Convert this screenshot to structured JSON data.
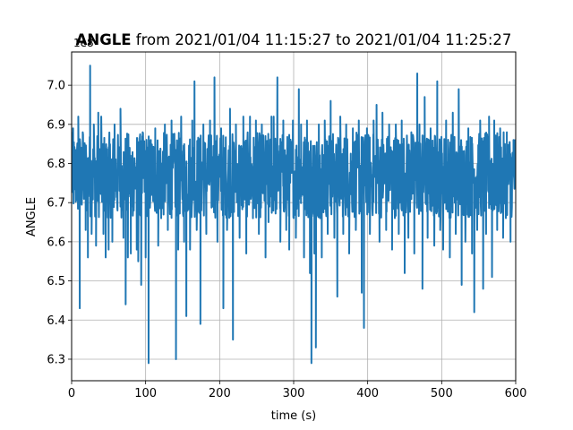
{
  "chart_data": {
    "type": "line",
    "title_bold": "ANGLE",
    "title_rest": " from 2021/01/04 11:15:27 to 2021/01/04 11:25:27",
    "xlabel": "time (s)",
    "ylabel": "ANGLE",
    "y_offset_label": "1e8",
    "xlim": [
      0,
      600
    ],
    "ylim": [
      6.245,
      7.085
    ],
    "xticks": [
      0,
      100,
      200,
      300,
      400,
      500,
      600
    ],
    "yticks": [
      6.3,
      6.4,
      6.5,
      6.6,
      6.7,
      6.8,
      6.9,
      7.0
    ],
    "grid": true,
    "color": "#1f77b4",
    "baseline": {
      "center": 6.77,
      "amplitude": 0.11,
      "samples": 1400
    },
    "spikes": [
      [
        2,
        6.89
      ],
      [
        9,
        6.92
      ],
      [
        11,
        6.43
      ],
      [
        15,
        6.88
      ],
      [
        19,
        6.63
      ],
      [
        22,
        6.56
      ],
      [
        25,
        7.05
      ],
      [
        27,
        6.62
      ],
      [
        30,
        6.9
      ],
      [
        33,
        6.59
      ],
      [
        36,
        6.93
      ],
      [
        40,
        6.92
      ],
      [
        43,
        6.62
      ],
      [
        46,
        6.56
      ],
      [
        50,
        6.58
      ],
      [
        55,
        6.6
      ],
      [
        58,
        6.9
      ],
      [
        62,
        6.68
      ],
      [
        66,
        6.94
      ],
      [
        70,
        6.61
      ],
      [
        73,
        6.44
      ],
      [
        76,
        6.56
      ],
      [
        80,
        6.57
      ],
      [
        84,
        6.68
      ],
      [
        88,
        6.58
      ],
      [
        90,
        6.55
      ],
      [
        94,
        6.49
      ],
      [
        96,
        6.88
      ],
      [
        100,
        6.56
      ],
      [
        104,
        6.29
      ],
      [
        107,
        6.86
      ],
      [
        113,
        6.89
      ],
      [
        117,
        6.59
      ],
      [
        121,
        6.66
      ],
      [
        126,
        6.9
      ],
      [
        130,
        6.63
      ],
      [
        135,
        6.91
      ],
      [
        141,
        6.3
      ],
      [
        144,
        6.58
      ],
      [
        148,
        6.92
      ],
      [
        152,
        6.6
      ],
      [
        155,
        6.41
      ],
      [
        160,
        6.58
      ],
      [
        163,
        6.91
      ],
      [
        166,
        7.01
      ],
      [
        169,
        6.63
      ],
      [
        174,
        6.39
      ],
      [
        178,
        6.9
      ],
      [
        182,
        6.62
      ],
      [
        187,
        6.91
      ],
      [
        193,
        7.02
      ],
      [
        197,
        6.6
      ],
      [
        202,
        6.89
      ],
      [
        205,
        6.43
      ],
      [
        210,
        6.63
      ],
      [
        214,
        6.94
      ],
      [
        218,
        6.35
      ],
      [
        222,
        6.9
      ],
      [
        227,
        6.61
      ],
      [
        232,
        6.92
      ],
      [
        236,
        6.57
      ],
      [
        241,
        6.92
      ],
      [
        245,
        6.66
      ],
      [
        249,
        6.91
      ],
      [
        253,
        6.62
      ],
      [
        257,
        6.9
      ],
      [
        262,
        6.56
      ],
      [
        266,
        6.65
      ],
      [
        270,
        6.92
      ],
      [
        273,
        6.92
      ],
      [
        278,
        7.02
      ],
      [
        282,
        6.6
      ],
      [
        286,
        6.91
      ],
      [
        290,
        6.63
      ],
      [
        294,
        6.58
      ],
      [
        299,
        6.91
      ],
      [
        303,
        6.61
      ],
      [
        307,
        6.99
      ],
      [
        310,
        6.9
      ],
      [
        314,
        6.56
      ],
      [
        318,
        6.91
      ],
      [
        322,
        6.52
      ],
      [
        324,
        6.29
      ],
      [
        328,
        6.57
      ],
      [
        330,
        6.33
      ],
      [
        334,
        6.9
      ],
      [
        338,
        6.56
      ],
      [
        342,
        6.91
      ],
      [
        346,
        6.62
      ],
      [
        350,
        6.96
      ],
      [
        355,
        6.61
      ],
      [
        359,
        6.46
      ],
      [
        363,
        6.92
      ],
      [
        367,
        6.62
      ],
      [
        371,
        6.9
      ],
      [
        375,
        6.57
      ],
      [
        380,
        6.89
      ],
      [
        384,
        6.63
      ],
      [
        388,
        6.91
      ],
      [
        392,
        6.47
      ],
      [
        395,
        6.38
      ],
      [
        399,
        6.89
      ],
      [
        403,
        6.62
      ],
      [
        408,
        6.91
      ],
      [
        412,
        6.95
      ],
      [
        416,
        6.6
      ],
      [
        420,
        6.93
      ],
      [
        425,
        6.63
      ],
      [
        429,
        6.9
      ],
      [
        433,
        6.58
      ],
      [
        438,
        6.9
      ],
      [
        442,
        6.62
      ],
      [
        446,
        6.91
      ],
      [
        450,
        6.52
      ],
      [
        455,
        6.61
      ],
      [
        459,
        6.88
      ],
      [
        463,
        6.57
      ],
      [
        467,
        7.03
      ],
      [
        470,
        6.9
      ],
      [
        474,
        6.48
      ],
      [
        477,
        6.97
      ],
      [
        481,
        6.61
      ],
      [
        485,
        6.89
      ],
      [
        490,
        6.59
      ],
      [
        494,
        7.01
      ],
      [
        498,
        6.63
      ],
      [
        502,
        6.58
      ],
      [
        506,
        6.91
      ],
      [
        511,
        6.56
      ],
      [
        515,
        6.93
      ],
      [
        519,
        6.62
      ],
      [
        523,
        6.99
      ],
      [
        527,
        6.49
      ],
      [
        532,
        6.6
      ],
      [
        536,
        6.89
      ],
      [
        541,
        6.57
      ],
      [
        544,
        6.42
      ],
      [
        548,
        6.63
      ],
      [
        552,
        6.91
      ],
      [
        556,
        6.48
      ],
      [
        560,
        6.62
      ],
      [
        564,
        6.92
      ],
      [
        568,
        6.51
      ],
      [
        571,
        6.91
      ],
      [
        575,
        6.63
      ],
      [
        579,
        6.89
      ],
      [
        583,
        6.61
      ],
      [
        588,
        6.88
      ],
      [
        593,
        6.6
      ],
      [
        597,
        6.86
      ]
    ]
  }
}
